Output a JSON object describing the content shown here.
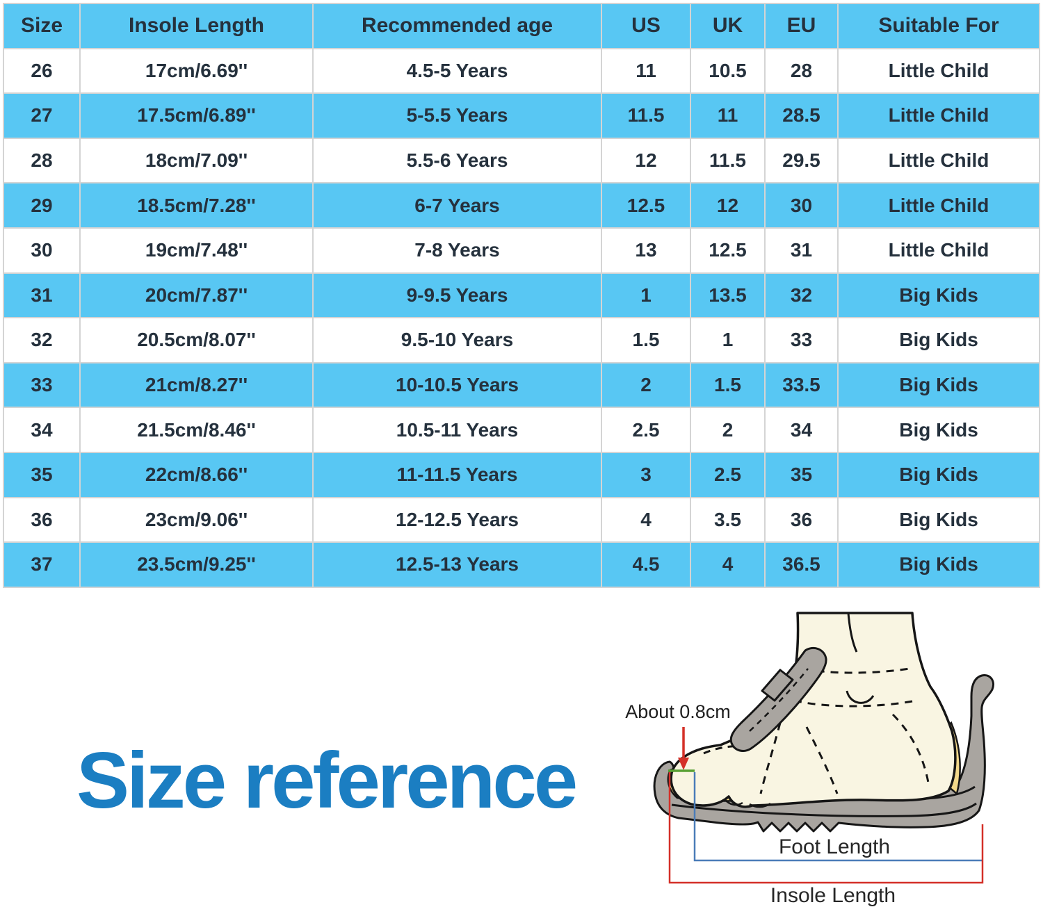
{
  "table": {
    "headers": [
      "Size",
      "Insole Length",
      "Recommended age",
      "US",
      "UK",
      "EU",
      "Suitable For"
    ],
    "rows": [
      [
        "26",
        "17cm/6.69''",
        "4.5-5 Years",
        "11",
        "10.5",
        "28",
        "Little Child"
      ],
      [
        "27",
        "17.5cm/6.89''",
        "5-5.5 Years",
        "11.5",
        "11",
        "28.5",
        "Little Child"
      ],
      [
        "28",
        "18cm/7.09''",
        "5.5-6 Years",
        "12",
        "11.5",
        "29.5",
        "Little Child"
      ],
      [
        "29",
        "18.5cm/7.28''",
        "6-7 Years",
        "12.5",
        "12",
        "30",
        "Little Child"
      ],
      [
        "30",
        "19cm/7.48''",
        "7-8 Years",
        "13",
        "12.5",
        "31",
        "Little Child"
      ],
      [
        "31",
        "20cm/7.87''",
        "9-9.5 Years",
        "1",
        "13.5",
        "32",
        "Big Kids"
      ],
      [
        "32",
        "20.5cm/8.07''",
        "9.5-10 Years",
        "1.5",
        "1",
        "33",
        "Big Kids"
      ],
      [
        "33",
        "21cm/8.27''",
        "10-10.5 Years",
        "2",
        "1.5",
        "33.5",
        "Big Kids"
      ],
      [
        "34",
        "21.5cm/8.46''",
        "10.5-11 Years",
        "2.5",
        "2",
        "34",
        "Big Kids"
      ],
      [
        "35",
        "22cm/8.66''",
        "11-11.5 Years",
        "3",
        "2.5",
        "35",
        "Big Kids"
      ],
      [
        "36",
        "23cm/9.06''",
        "12-12.5 Years",
        "4",
        "3.5",
        "36",
        "Big Kids"
      ],
      [
        "37",
        "23.5cm/9.25''",
        "12.5-13 Years",
        "4.5",
        "4",
        "36.5",
        "Big Kids"
      ]
    ]
  },
  "section_title": "Size reference",
  "diagram": {
    "offset_label": "About 0.8cm",
    "foot_length_label": "Foot Length",
    "insole_length_label": "Insole Length"
  },
  "colors": {
    "row_blue": "#58c7f3",
    "table_text": "#25313d",
    "title_blue": "#1b7ec2",
    "annotation_red": "#d43028",
    "annotation_blue": "#4a7cb8",
    "annotation_green": "#58a033",
    "sole_gray": "#a9a5a0",
    "insole_yellow": "#f3d98b",
    "foot_cream": "#f9f5e2"
  }
}
